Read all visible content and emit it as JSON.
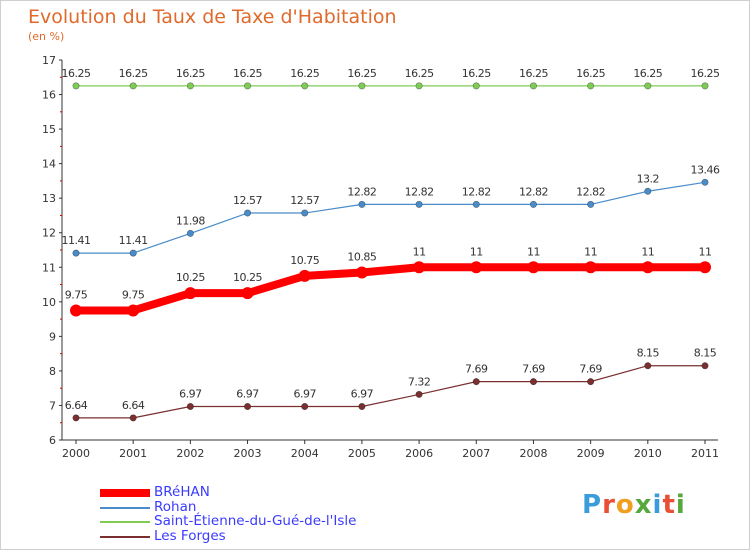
{
  "title": "Evolution du Taux de Taxe d'Habitation",
  "subtitle": "(en %)",
  "logo": {
    "letters": [
      "P",
      "r",
      "o",
      "x",
      "i",
      "t",
      "i"
    ],
    "colors": [
      "#3b9cdc",
      "#e94f36",
      "#f0a020",
      "#56a83c",
      "#3b9cdc",
      "#e94f36",
      "#56a83c"
    ]
  },
  "chart_data": {
    "type": "line",
    "title": "Evolution du Taux de Taxe d'Habitation",
    "ylabel": "(en %)",
    "xlabel": "",
    "ylim": [
      6,
      17
    ],
    "yticks": [
      "6",
      "7",
      "8",
      "9",
      "10",
      "11",
      "12",
      "13",
      "14",
      "15",
      "16",
      "17"
    ],
    "x": [
      "2000",
      "2001",
      "2002",
      "2003",
      "2004",
      "2005",
      "2006",
      "2007",
      "2008",
      "2009",
      "2010",
      "2011"
    ],
    "grid": false,
    "legend": "bottom-left",
    "series": [
      {
        "name": "BRéHAN",
        "color": "#ff0000",
        "values": [
          9.75,
          9.75,
          10.25,
          10.25,
          10.75,
          10.85,
          11,
          11,
          11,
          11,
          11,
          11
        ],
        "labels": [
          "9.75",
          "9.75",
          "10.25",
          "10.25",
          "10.75",
          "10.85",
          "11",
          "11",
          "11",
          "11",
          "11",
          "11"
        ]
      },
      {
        "name": "Rohan",
        "color": "#4a8cc9",
        "values": [
          11.41,
          11.41,
          11.98,
          12.57,
          12.57,
          12.82,
          12.82,
          12.82,
          12.82,
          12.82,
          13.2,
          13.46
        ],
        "labels": [
          "11.41",
          "11.41",
          "11.98",
          "12.57",
          "12.57",
          "12.82",
          "12.82",
          "12.82",
          "12.82",
          "12.82",
          "13.2",
          "13.46"
        ]
      },
      {
        "name": "Saint-Étienne-du-Gué-de-l'Isle",
        "color": "#7fcc55",
        "values": [
          16.25,
          16.25,
          16.25,
          16.25,
          16.25,
          16.25,
          16.25,
          16.25,
          16.25,
          16.25,
          16.25,
          16.25
        ],
        "labels": [
          "16.25",
          "16.25",
          "16.25",
          "16.25",
          "16.25",
          "16.25",
          "16.25",
          "16.25",
          "16.25",
          "16.25",
          "16.25",
          "16.25"
        ]
      },
      {
        "name": "Les Forges",
        "color": "#7a3030",
        "values": [
          6.64,
          6.64,
          6.97,
          6.97,
          6.97,
          6.97,
          7.32,
          7.69,
          7.69,
          7.69,
          8.15,
          8.15
        ],
        "labels": [
          "6.64",
          "6.64",
          "6.97",
          "6.97",
          "6.97",
          "6.97",
          "7.32",
          "7.69",
          "7.69",
          "7.69",
          "8.15",
          "8.15"
        ]
      }
    ]
  }
}
